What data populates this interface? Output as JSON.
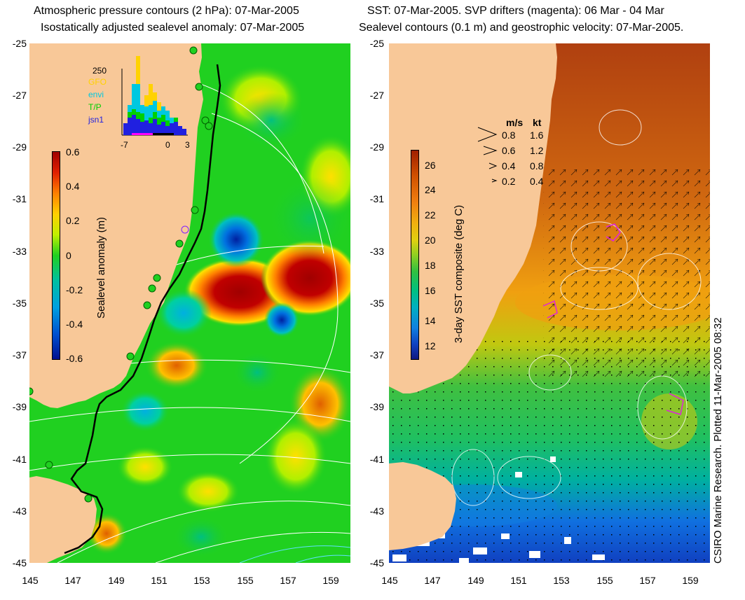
{
  "titles": {
    "left_line1": "Atmospheric pressure contours (2 hPa): 07-Mar-2005",
    "left_line2": "Isostatically adjusted sealevel anomaly: 07-Mar-2005",
    "right_line1": "SST: 07-Mar-2005. SVP drifters (magenta): 06 Mar - 04 Mar",
    "right_line2": "Sealevel contours (0.1 m) and geostrophic velocity: 07-Mar-2005."
  },
  "axes": {
    "lat_ticks": [
      "-25",
      "-27",
      "-29",
      "-31",
      "-33",
      "-35",
      "-37",
      "-39",
      "-41",
      "-43",
      "-45"
    ],
    "lon_ticks": [
      "145",
      "147",
      "149",
      "151",
      "153",
      "155",
      "157",
      "159"
    ]
  },
  "left_colorbar": {
    "label": "Sealevel anomaly (m)",
    "ticks": [
      "0.6",
      "0.4",
      "0.2",
      "0",
      "-0.2",
      "-0.4",
      "-0.6"
    ]
  },
  "right_colorbar": {
    "label": "3-day SST composite (deg C)",
    "ticks": [
      "26",
      "24",
      "22",
      "20",
      "18",
      "16",
      "14",
      "12"
    ]
  },
  "histogram": {
    "count_label": "250",
    "legend": [
      {
        "label": "GFO",
        "color": "#ffd200"
      },
      {
        "label": "envi",
        "color": "#00c8e0"
      },
      {
        "label": "T/P",
        "color": "#00d000"
      },
      {
        "label": "jsn1",
        "color": "#2020e0"
      }
    ],
    "x_ticks": [
      "-7",
      "0",
      "3"
    ]
  },
  "speed_legend": {
    "header_ms": "m/s",
    "header_kt": "kt",
    "rows": [
      {
        "ms": "0.8",
        "kt": "1.6"
      },
      {
        "ms": "0.6",
        "kt": "1.2"
      },
      {
        "ms": "0.4",
        "kt": "0.8"
      },
      {
        "ms": "0.2",
        "kt": "0.4"
      }
    ]
  },
  "credit": "CSIRO Marine Research. Plotted 11-Mar-2005 08:32",
  "colors": {
    "land": "#f8c898",
    "sla_zero": "#20d020",
    "sla_high": "#a00000",
    "sla_low": "#0020a0",
    "sst_warm": "#c86010",
    "sst_cool": "#1060e0"
  }
}
